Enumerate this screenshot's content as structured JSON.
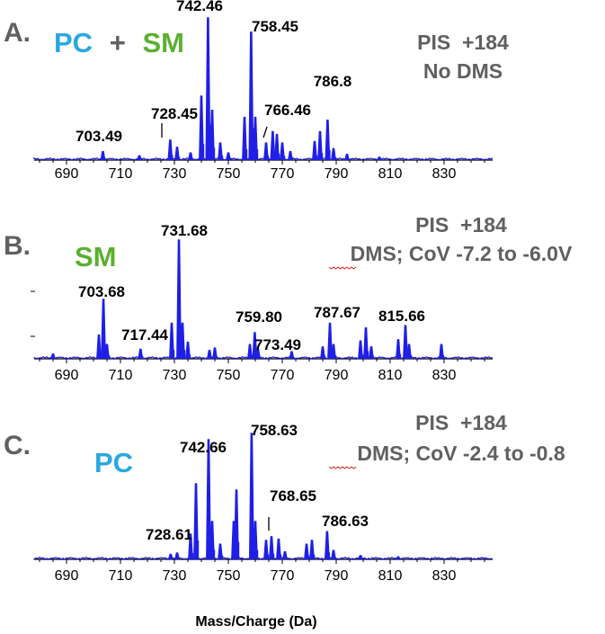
{
  "figure": {
    "xlabel": "Mass/Charge (Da)",
    "colors": {
      "spectrum": "#1f1fe6",
      "pc": "#2aa8e0",
      "sm": "#5bb030",
      "panel_text": "#606060",
      "axis": "#000000"
    }
  },
  "chart_data": [
    {
      "type": "line",
      "panel": "A.",
      "title_parts": [
        "PC",
        "+",
        "SM"
      ],
      "info": [
        "PIS  +184",
        "No DMS"
      ],
      "x_ticks": [
        690,
        710,
        730,
        750,
        770,
        790,
        810,
        830
      ],
      "xlim": [
        678,
        848
      ],
      "peak_labels": [
        "742.46",
        "758.45",
        "728.45",
        "703.49",
        "766.46",
        "786.8"
      ],
      "peaks": [
        {
          "x": 703.49,
          "y": 0.06
        },
        {
          "x": 717,
          "y": 0.03
        },
        {
          "x": 728.45,
          "y": 0.14
        },
        {
          "x": 731,
          "y": 0.09
        },
        {
          "x": 736,
          "y": 0.05
        },
        {
          "x": 740,
          "y": 0.45
        },
        {
          "x": 742.46,
          "y": 1.0
        },
        {
          "x": 744,
          "y": 0.35
        },
        {
          "x": 747,
          "y": 0.12
        },
        {
          "x": 750,
          "y": 0.05
        },
        {
          "x": 756,
          "y": 0.3
        },
        {
          "x": 758.45,
          "y": 0.9
        },
        {
          "x": 760,
          "y": 0.3
        },
        {
          "x": 764,
          "y": 0.12
        },
        {
          "x": 766.46,
          "y": 0.2
        },
        {
          "x": 768,
          "y": 0.18
        },
        {
          "x": 770,
          "y": 0.12
        },
        {
          "x": 773,
          "y": 0.06
        },
        {
          "x": 782,
          "y": 0.13
        },
        {
          "x": 784,
          "y": 0.2
        },
        {
          "x": 786.8,
          "y": 0.28
        },
        {
          "x": 789,
          "y": 0.08
        },
        {
          "x": 794,
          "y": 0.04
        },
        {
          "x": 806,
          "y": 0.02
        }
      ]
    },
    {
      "type": "line",
      "panel": "B.",
      "title_parts": [
        "SM"
      ],
      "info": [
        "PIS  +184",
        "DMS; CoV -7.2 to -6.0V"
      ],
      "x_ticks": [
        690,
        710,
        730,
        750,
        770,
        790,
        810,
        830
      ],
      "xlim": [
        678,
        848
      ],
      "peak_labels": [
        "731.68",
        "703.68",
        "717.44",
        "759.80",
        "773.49",
        "787.67",
        "815.66"
      ],
      "peaks": [
        {
          "x": 685,
          "y": 0.04
        },
        {
          "x": 702,
          "y": 0.2
        },
        {
          "x": 703.68,
          "y": 0.5
        },
        {
          "x": 705,
          "y": 0.12
        },
        {
          "x": 717.44,
          "y": 0.08
        },
        {
          "x": 729,
          "y": 0.3
        },
        {
          "x": 731.68,
          "y": 1.0
        },
        {
          "x": 733,
          "y": 0.3
        },
        {
          "x": 735,
          "y": 0.14
        },
        {
          "x": 743,
          "y": 0.07
        },
        {
          "x": 745,
          "y": 0.09
        },
        {
          "x": 758,
          "y": 0.12
        },
        {
          "x": 759.8,
          "y": 0.22
        },
        {
          "x": 761,
          "y": 0.08
        },
        {
          "x": 773.49,
          "y": 0.06
        },
        {
          "x": 785,
          "y": 0.1
        },
        {
          "x": 787.67,
          "y": 0.3
        },
        {
          "x": 789,
          "y": 0.12
        },
        {
          "x": 799,
          "y": 0.15
        },
        {
          "x": 801,
          "y": 0.26
        },
        {
          "x": 803,
          "y": 0.1
        },
        {
          "x": 813,
          "y": 0.16
        },
        {
          "x": 815.66,
          "y": 0.28
        },
        {
          "x": 817,
          "y": 0.12
        },
        {
          "x": 829,
          "y": 0.12
        }
      ]
    },
    {
      "type": "line",
      "panel": "C.",
      "title_parts": [
        "PC"
      ],
      "info": [
        "PIS  +184",
        "DMS; CoV -2.4 to -0.8"
      ],
      "x_ticks": [
        690,
        710,
        730,
        750,
        770,
        790,
        810,
        830
      ],
      "xlim": [
        678,
        848
      ],
      "peak_labels": [
        "742.66",
        "758.63",
        "728.61",
        "768.65",
        "786.63"
      ],
      "peaks": [
        {
          "x": 728.61,
          "y": 0.04
        },
        {
          "x": 731,
          "y": 0.05
        },
        {
          "x": 736,
          "y": 0.2
        },
        {
          "x": 738,
          "y": 0.6
        },
        {
          "x": 742.66,
          "y": 0.95
        },
        {
          "x": 744,
          "y": 0.3
        },
        {
          "x": 747,
          "y": 0.12
        },
        {
          "x": 752,
          "y": 0.3
        },
        {
          "x": 753,
          "y": 0.55
        },
        {
          "x": 758.63,
          "y": 1.0
        },
        {
          "x": 760,
          "y": 0.3
        },
        {
          "x": 764,
          "y": 0.15
        },
        {
          "x": 766,
          "y": 0.18
        },
        {
          "x": 768.65,
          "y": 0.16
        },
        {
          "x": 771,
          "y": 0.06
        },
        {
          "x": 779,
          "y": 0.12
        },
        {
          "x": 781,
          "y": 0.15
        },
        {
          "x": 786.63,
          "y": 0.22
        },
        {
          "x": 789,
          "y": 0.07
        },
        {
          "x": 799,
          "y": 0.03
        },
        {
          "x": 813,
          "y": 0.02
        }
      ]
    }
  ]
}
